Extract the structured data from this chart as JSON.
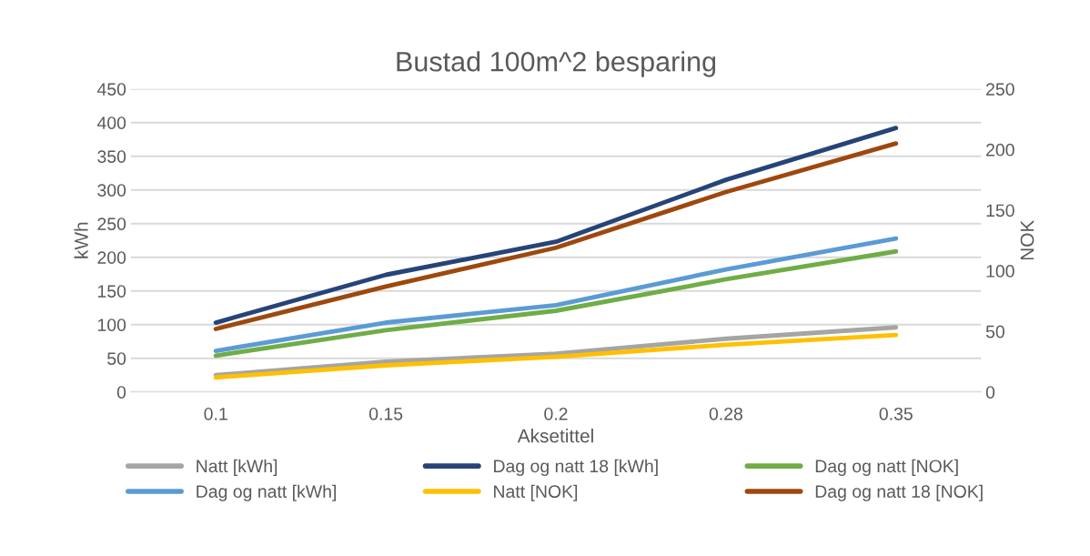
{
  "chart_data": {
    "type": "line",
    "title": "Bustad 100m^2 besparing",
    "xlabel": "Aksetittel",
    "ylabel": "kWh",
    "y2label": "NOK",
    "categories": [
      "0.1",
      "0.15",
      "0.2",
      "0.28",
      "0.35"
    ],
    "ylim": [
      0,
      450
    ],
    "yticks": [
      0,
      50,
      100,
      150,
      200,
      250,
      300,
      350,
      400,
      450
    ],
    "y2lim": [
      0,
      250
    ],
    "y2ticks": [
      0,
      50,
      100,
      150,
      200,
      250
    ],
    "grid": "y",
    "legend": "bottom",
    "marker": "none",
    "line_style": "solid",
    "series": [
      {
        "name": "Natt [kWh]",
        "color": "#a5a5a5",
        "values": [
          25,
          45,
          57,
          79,
          96
        ]
      },
      {
        "name": "Dag og natt [kWh]",
        "color": "#5b9bd5",
        "values": [
          61,
          103,
          129,
          182,
          228
        ]
      },
      {
        "name": "Dag og natt 18 [kWh]",
        "color": "#264478",
        "values": [
          103,
          174,
          223,
          315,
          392
        ]
      },
      {
        "name": "Natt [NOK]",
        "color": "#ffc000",
        "values": [
          12,
          22,
          29,
          39,
          47
        ],
        "axis": "y2"
      },
      {
        "name": "Dag og natt [NOK]",
        "color": "#70ad47",
        "values": [
          30,
          51,
          67,
          93,
          116
        ],
        "axis": "y2"
      },
      {
        "name": "Dag og natt 18 [NOK]",
        "color": "#9e480e",
        "values": [
          52,
          87,
          119,
          165,
          205
        ],
        "axis": "y2"
      }
    ]
  }
}
